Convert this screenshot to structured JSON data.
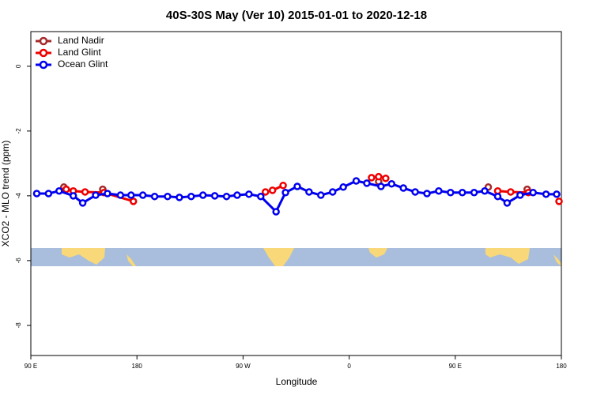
{
  "chart_data": {
    "type": "line",
    "title": "40S-30S May (Ver 10)   2015-01-01 to 2020-12-18",
    "xlabel": "Longitude",
    "ylabel": "XCO2 - MLO trend (ppm)",
    "xlim": [
      90,
      540
    ],
    "ylim": [
      -8.93,
      1.07
    ],
    "xticks": [
      {
        "value": 90,
        "label": "90 E"
      },
      180,
      {
        "value": 270,
        "label": "90 W"
      },
      {
        "value": 360,
        "label": "0"
      },
      {
        "value": 450,
        "label": "90 E"
      },
      {
        "value": 540,
        "label": "180"
      }
    ],
    "yticks": [
      0,
      -2,
      -4,
      -6,
      -8
    ],
    "legend": "top-left",
    "series": [
      {
        "name": "Land Nadir",
        "color": "#a52a2a",
        "x": [
          118,
          140,
          151,
          300,
          385,
          430,
          478,
          500,
          511
        ],
        "values": [
          -3.73,
          null,
          -3.8,
          null,
          -3.56,
          null,
          -3.73,
          null,
          -3.8
        ]
      },
      {
        "name": "Land Glint",
        "color": "#ee0000",
        "x": [
          120,
          126,
          136,
          152,
          177,
          230,
          289,
          295,
          304,
          340,
          379,
          385,
          391,
          440,
          486,
          497,
          512,
          525,
          538
        ],
        "values": [
          -3.8,
          -3.85,
          -3.88,
          -3.9,
          -4.17,
          null,
          -3.88,
          -3.83,
          -3.68,
          null,
          -3.44,
          -3.41,
          -3.46,
          null,
          -3.85,
          -3.88,
          -3.9,
          null,
          -4.17
        ]
      },
      {
        "name": "Ocean Glint",
        "color": "#0000ee",
        "x": [
          95,
          105,
          114,
          126,
          134,
          145,
          155,
          166,
          175,
          185,
          195,
          206,
          216,
          226,
          236,
          246,
          256,
          265,
          275,
          285,
          298,
          306,
          316,
          326,
          336,
          346,
          355,
          366,
          375,
          387,
          396,
          406,
          416,
          426,
          436,
          446,
          456,
          466,
          475,
          486,
          494,
          505,
          516,
          527,
          536
        ],
        "values": [
          -3.93,
          -3.93,
          -3.85,
          -4.0,
          -4.22,
          -3.98,
          -3.93,
          -3.98,
          -3.98,
          -3.98,
          -4.02,
          -4.02,
          -4.05,
          -4.02,
          -3.98,
          -4.0,
          -4.02,
          -3.98,
          -3.95,
          -4.02,
          -4.49,
          -3.9,
          -3.71,
          -3.88,
          -3.98,
          -3.88,
          -3.73,
          -3.54,
          -3.61,
          -3.71,
          -3.63,
          -3.76,
          -3.88,
          -3.93,
          -3.85,
          -3.9,
          -3.9,
          -3.9,
          -3.85,
          -4.02,
          -4.22,
          -3.98,
          -3.9,
          -3.95,
          -3.95
        ]
      }
    ]
  }
}
